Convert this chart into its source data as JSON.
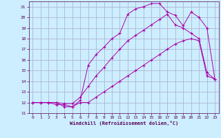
{
  "xlabel": "Windchill (Refroidissement éolien,°C)",
  "background_color": "#cceeff",
  "grid_color": "#aaaacc",
  "line_color": "#aa00aa",
  "xlim": [
    -0.5,
    23.5
  ],
  "ylim": [
    11,
    21.5
  ],
  "yticks": [
    11,
    12,
    13,
    14,
    15,
    16,
    17,
    18,
    19,
    20,
    21
  ],
  "xticks": [
    0,
    1,
    2,
    3,
    4,
    5,
    6,
    7,
    8,
    9,
    10,
    11,
    12,
    13,
    14,
    15,
    16,
    17,
    18,
    19,
    20,
    21,
    22,
    23
  ],
  "line1_x": [
    0,
    1,
    2,
    3,
    4,
    5,
    6,
    7,
    8,
    9,
    10,
    11,
    12,
    13,
    14,
    15,
    16,
    17,
    18,
    19,
    20,
    21,
    22,
    23
  ],
  "line1_y": [
    12,
    12,
    12,
    11.8,
    11.8,
    11.6,
    12,
    12,
    12.5,
    13,
    13.5,
    14,
    14.5,
    15,
    15.5,
    16,
    16.5,
    17,
    17.5,
    17.8,
    18,
    17.8,
    14.5,
    14.2
  ],
  "line2_x": [
    0,
    1,
    2,
    3,
    4,
    5,
    6,
    7,
    8,
    9,
    10,
    11,
    12,
    13,
    14,
    15,
    16,
    17,
    18,
    19,
    20,
    21,
    22,
    23
  ],
  "line2_y": [
    12,
    12,
    12,
    12,
    11.9,
    11.9,
    12.5,
    13.5,
    14.5,
    15.3,
    16.2,
    17,
    17.8,
    18.3,
    18.8,
    19.3,
    19.8,
    20.3,
    19.3,
    19,
    18.5,
    18,
    14.8,
    14.2
  ],
  "line3_x": [
    0,
    1,
    2,
    3,
    4,
    5,
    6,
    7,
    8,
    9,
    10,
    11,
    12,
    13,
    14,
    15,
    16,
    17,
    18,
    19,
    20,
    21,
    22,
    23
  ],
  "line3_y": [
    12,
    12,
    12,
    12,
    11.6,
    11.6,
    12.2,
    15.5,
    16.5,
    17.2,
    18,
    18.5,
    20.3,
    20.8,
    21.0,
    21.3,
    21.3,
    20.5,
    20.2,
    19.2,
    20.5,
    20,
    19,
    14.2
  ]
}
